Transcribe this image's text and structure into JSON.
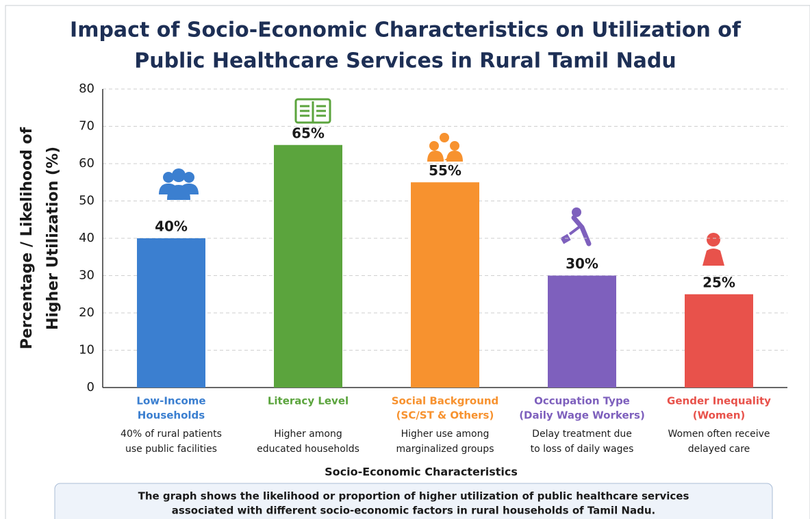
{
  "chart_data": {
    "type": "bar",
    "title": [
      "Impact of Socio-Economic Characteristics on Utilization of",
      "Public Healthcare Services in Rural Tamil Nadu"
    ],
    "categories": [
      [
        "Low-Income",
        "Households"
      ],
      [
        "Literacy Level"
      ],
      [
        "Social Background",
        "(SC/ST & Others)"
      ],
      [
        "Occupation Type",
        "(Daily Wage Workers)"
      ],
      [
        "Gender Inequality",
        "(Women)"
      ]
    ],
    "annotations": [
      [
        "40% of rural patients",
        "use public facilities"
      ],
      [
        "Higher among",
        "educated households"
      ],
      [
        "Higher use among",
        "marginalized groups"
      ],
      [
        "Delay treatment due",
        "to loss of daily wages"
      ],
      [
        "Women often receive",
        "delayed care"
      ]
    ],
    "values": [
      40,
      65,
      55,
      30,
      25
    ],
    "value_labels": [
      "40%",
      "65%",
      "55%",
      "30%",
      "25%"
    ],
    "colors": [
      "#3b7fd0",
      "#5ba43d",
      "#f7922f",
      "#7e60bd",
      "#e8524b"
    ],
    "x_label": "Socio-Economic Characteristics",
    "y_label": [
      "Percentage / Likelihood of",
      "Higher Utilization (%)"
    ],
    "ylim": [
      0,
      80
    ],
    "yticks": [
      0,
      10,
      20,
      30,
      40,
      50,
      60,
      70,
      80
    ],
    "grid": true,
    "note": [
      "The graph shows the likelihood or proportion of higher utilization of public healthcare services",
      "associated with different socio-economic factors in rural households of Tamil Nadu."
    ]
  }
}
